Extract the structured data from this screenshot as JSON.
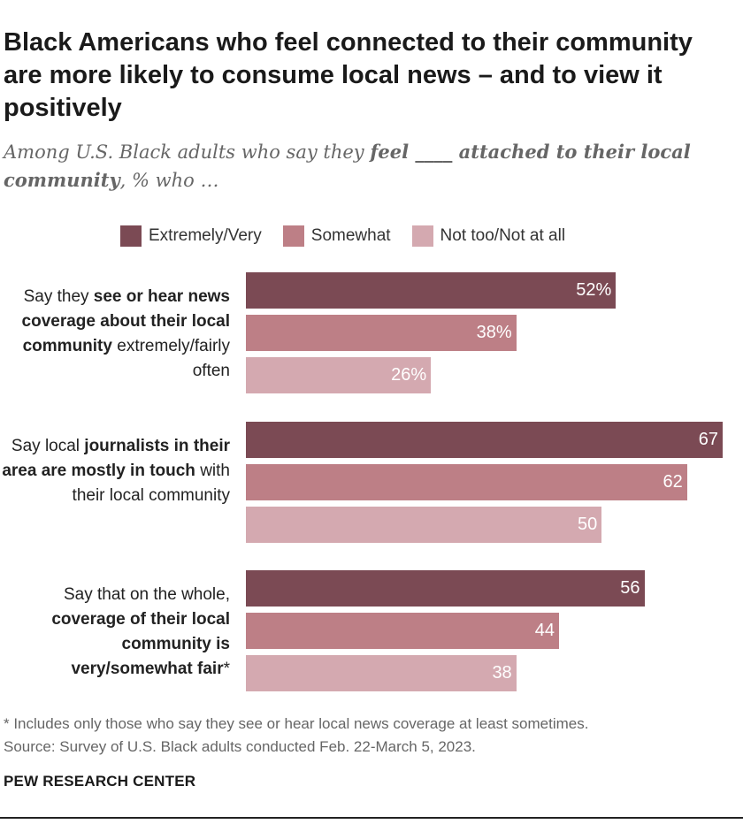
{
  "title": "Black Americans who feel connected to their community are more likely to consume local news – and to view it positively",
  "subtitle": {
    "part1": "Among U.S. Black adults who say they ",
    "bold1": "feel ____ attached to their local community",
    "part2": ", % who …"
  },
  "colors": {
    "extremely_very": "#7b4a54",
    "somewhat": "#bd7f86",
    "not_too": "#d4a9b0"
  },
  "chart_data": {
    "type": "bar",
    "orientation": "horizontal",
    "series": [
      {
        "name": "Extremely/Very",
        "values": [
          52,
          67,
          56
        ]
      },
      {
        "name": "Somewhat",
        "values": [
          38,
          62,
          44
        ]
      },
      {
        "name": "Not too/Not at all",
        "values": [
          26,
          50,
          38
        ]
      }
    ],
    "categories": [
      [
        {
          "text": "Say they ",
          "bold": false
        },
        {
          "text": "see or hear news coverage about their local community",
          "bold": true
        },
        {
          "text": " extremely/fairly often",
          "bold": false
        }
      ],
      [
        {
          "text": "Say local ",
          "bold": false
        },
        {
          "text": "journalists in their area are mostly in touch",
          "bold": true
        },
        {
          "text": " with their local community",
          "bold": false
        }
      ],
      [
        {
          "text": "Say that on the whole, ",
          "bold": false
        },
        {
          "text": "coverage of their local community is very/somewhat fair",
          "bold": true
        },
        {
          "text": "*",
          "bold": false
        }
      ]
    ],
    "value_labels": [
      [
        "52%",
        "38%",
        "26%"
      ],
      [
        "67",
        "62",
        "50"
      ],
      [
        "56",
        "44",
        "38"
      ]
    ],
    "xlim": [
      0,
      67
    ]
  },
  "footnote": "* Includes only those who say they see or hear local news coverage at least sometimes.",
  "source": "Source: Survey of U.S. Black adults conducted Feb. 22-March 5, 2023.",
  "brand": "PEW RESEARCH CENTER"
}
